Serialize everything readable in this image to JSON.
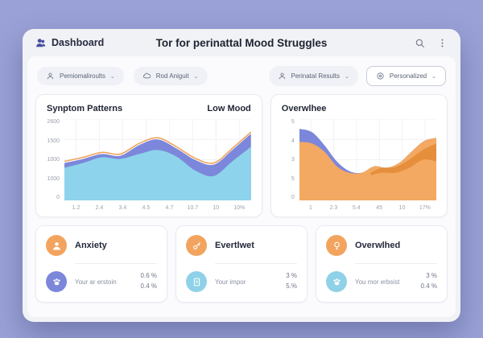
{
  "colors": {
    "background": "#99A1D6",
    "window": "#F1F2F6",
    "panel": "#FBFBFD",
    "accent_purple": "#7C87DB",
    "accent_lightblue": "#8ED3EC",
    "accent_orange": "#F3A961",
    "accent_orange_dark": "#E0862F",
    "logo_indigo": "#474FA0"
  },
  "header": {
    "app_name": "Dashboard",
    "title": "Tor for perinattal Mood Struggles",
    "icons": [
      "search-icon",
      "kebab-menu-icon"
    ]
  },
  "filters": [
    {
      "label": "Pemiomaliroults",
      "icon": "person-icon",
      "chevron": "⌄"
    },
    {
      "label": "Rod Aniguit",
      "icon": "cloud-icon",
      "chevron": "⌄"
    },
    {
      "label": "Perinatal Results",
      "icon": "person-icon",
      "chevron": "⌄"
    },
    {
      "label": "Personalized",
      "icon": "circle-icon",
      "chevron": "⌄"
    }
  ],
  "chart_data": [
    {
      "type": "area",
      "title": "Synptom Patterns",
      "legend": "Low Mood",
      "y_ticks": [
        "2600",
        "1500",
        "1000",
        "1000",
        "0"
      ],
      "x_ticks": [
        "1.2",
        "2.4",
        "3.4",
        "4.5",
        "4.7",
        "10.7",
        "10",
        "10%"
      ],
      "ylim": [
        0,
        2600
      ],
      "grid": true,
      "series": [
        {
          "name": "band-purple",
          "kind": "area",
          "color": "#7C87DB",
          "values": [
            46,
            51,
            57,
            55,
            68,
            75,
            64,
            50,
            44,
            62,
            82
          ]
        },
        {
          "name": "low-mood-lightblue",
          "kind": "area",
          "color": "#8ED3EC",
          "values": [
            40,
            46,
            53,
            51,
            57,
            62,
            54,
            37,
            30,
            48,
            66
          ]
        },
        {
          "name": "top-orange-line",
          "kind": "line",
          "color": "#F0A35C",
          "values": [
            48,
            53,
            59,
            57,
            70,
            77,
            66,
            52,
            46,
            64,
            84
          ]
        }
      ]
    },
    {
      "type": "area",
      "title": "Overwlhee",
      "legend": "",
      "y_ticks": [
        "5",
        "4",
        "3",
        "5",
        "0"
      ],
      "x_ticks": [
        "1",
        "2.3",
        "5.4",
        "45",
        "10",
        "17%"
      ],
      "ylim": [
        0,
        5
      ],
      "grid": true,
      "series": [
        {
          "name": "band-blue",
          "kind": "area",
          "color": "#7C87DB",
          "values": [
            88,
            84,
            68,
            48,
            36,
            34,
            42,
            40,
            46,
            60,
            73,
            77
          ]
        },
        {
          "name": "overwhelm-orange",
          "kind": "area",
          "color": "#F3A961",
          "values": [
            72,
            70,
            60,
            42,
            34,
            34,
            42,
            40,
            46,
            60,
            73,
            77
          ]
        }
      ],
      "band": {
        "name": "dark-orange-overlap",
        "color": "#E0862F",
        "opacity": 0.75,
        "x": [
          52,
          60,
          70,
          80,
          90,
          100
        ],
        "top": [
          34,
          40,
          41,
          50,
          62,
          70
        ],
        "bottom": [
          31,
          34,
          34,
          40,
          50,
          48
        ]
      }
    }
  ],
  "stats": [
    {
      "title": "Anxiety",
      "title_icon": "person-icon",
      "row_icon": "paw-icon",
      "label": "Your ar erstoin",
      "value1": "0.6 %",
      "value2": "0.4 %"
    },
    {
      "title": "Evertlwet",
      "title_icon": "key-icon",
      "row_icon": "document-icon",
      "label": "Your impor",
      "value1": "3 %",
      "value2": "5.%"
    },
    {
      "title": "Overwlhed",
      "title_icon": "bulb-icon",
      "row_icon": "paw-icon",
      "label": "You mor erbsist",
      "value1": "3 %",
      "value2": "0.4 %"
    }
  ]
}
